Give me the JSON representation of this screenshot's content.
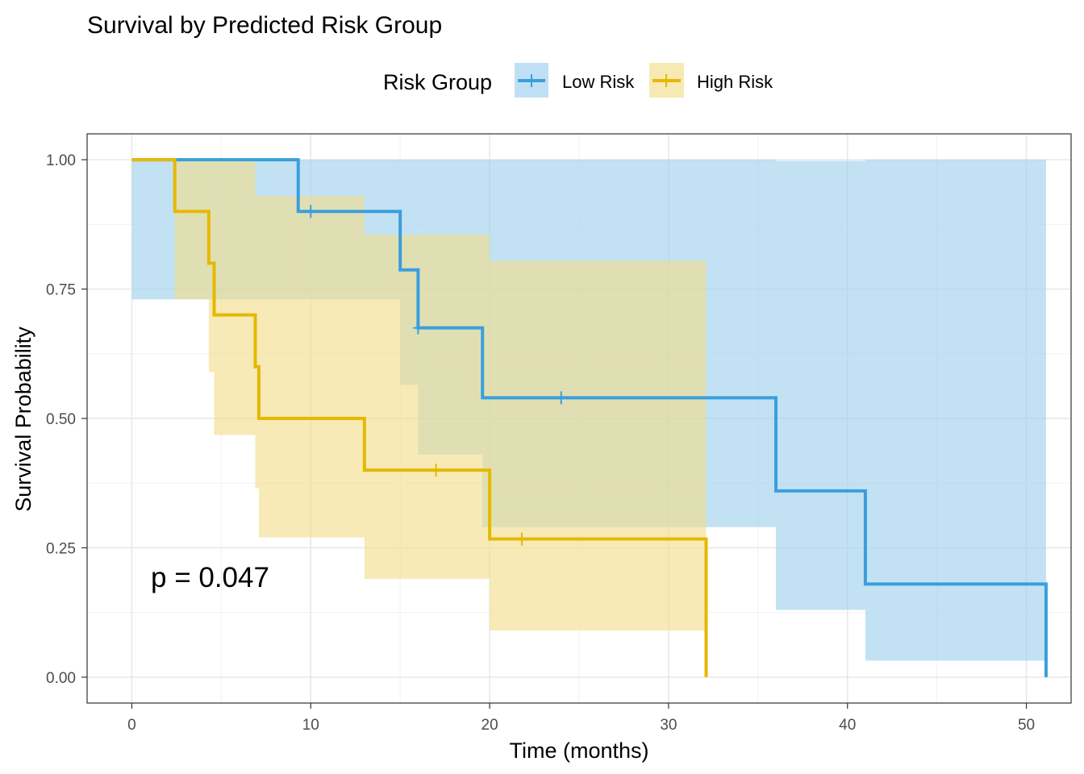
{
  "chart_data": {
    "type": "line",
    "subtype": "kaplan-meier step with confidence bands",
    "title": "Survival by Predicted Risk Group",
    "xlabel": "Time (months)",
    "ylabel": "Survival Probability",
    "xlim": [
      -2.5,
      52.5
    ],
    "ylim": [
      -0.05,
      1.05
    ],
    "xticks": [
      0,
      10,
      20,
      30,
      40,
      50
    ],
    "yticks": [
      0,
      0.25,
      0.5,
      0.75,
      1.0
    ],
    "xtick_labels": [
      "0",
      "10",
      "20",
      "30",
      "40",
      "50"
    ],
    "ytick_labels": [
      "0.00",
      "0.25",
      "0.50",
      "0.75",
      "1.00"
    ],
    "grid": true,
    "legend": {
      "title": "Risk Group",
      "position": "top",
      "entries": [
        "Low Risk",
        "High Risk"
      ]
    },
    "annotation": "p = 0.047",
    "series": [
      {
        "name": "Low Risk",
        "color": "#3a9fdc",
        "fill": "#9dd0ee",
        "steps": [
          {
            "t": 0.0,
            "s": 1.0
          },
          {
            "t": 9.3,
            "s": 0.9
          },
          {
            "t": 15.0,
            "s": 0.787
          },
          {
            "t": 16.0,
            "s": 0.675
          },
          {
            "t": 19.6,
            "s": 0.54
          },
          {
            "t": 36.0,
            "s": 0.36
          },
          {
            "t": 41.0,
            "s": 0.18
          },
          {
            "t": 51.1,
            "s": 0.0
          }
        ],
        "lower": [
          0.73,
          0.73,
          0.565,
          0.43,
          0.29,
          0.13,
          0.032,
          0.032
        ],
        "upper": [
          1.0,
          1.0,
          1.0,
          1.0,
          1.0,
          0.998,
          1.0,
          1.0
        ],
        "censored": [
          {
            "t": 10.0,
            "s": 0.9
          },
          {
            "t": 16.0,
            "s": 0.675
          },
          {
            "t": 24.0,
            "s": 0.54
          }
        ]
      },
      {
        "name": "High Risk",
        "color": "#e6b800",
        "fill": "#f2dd8a",
        "steps": [
          {
            "t": 0.0,
            "s": 1.0
          },
          {
            "t": 2.4,
            "s": 0.9
          },
          {
            "t": 4.3,
            "s": 0.8
          },
          {
            "t": 4.6,
            "s": 0.7
          },
          {
            "t": 6.9,
            "s": 0.6
          },
          {
            "t": 7.1,
            "s": 0.5
          },
          {
            "t": 13.0,
            "s": 0.4
          },
          {
            "t": 20.0,
            "s": 0.267
          },
          {
            "t": 32.1,
            "s": 0.0
          }
        ],
        "lower": [
          1.0,
          0.73,
          0.59,
          0.468,
          0.365,
          0.27,
          0.19,
          0.09,
          0.09
        ],
        "upper": [
          1.0,
          1.0,
          1.0,
          1.0,
          0.93,
          0.93,
          0.855,
          0.805,
          0.805
        ],
        "censored": [
          {
            "t": 17.0,
            "s": 0.4
          },
          {
            "t": 21.8,
            "s": 0.267
          }
        ]
      }
    ]
  }
}
